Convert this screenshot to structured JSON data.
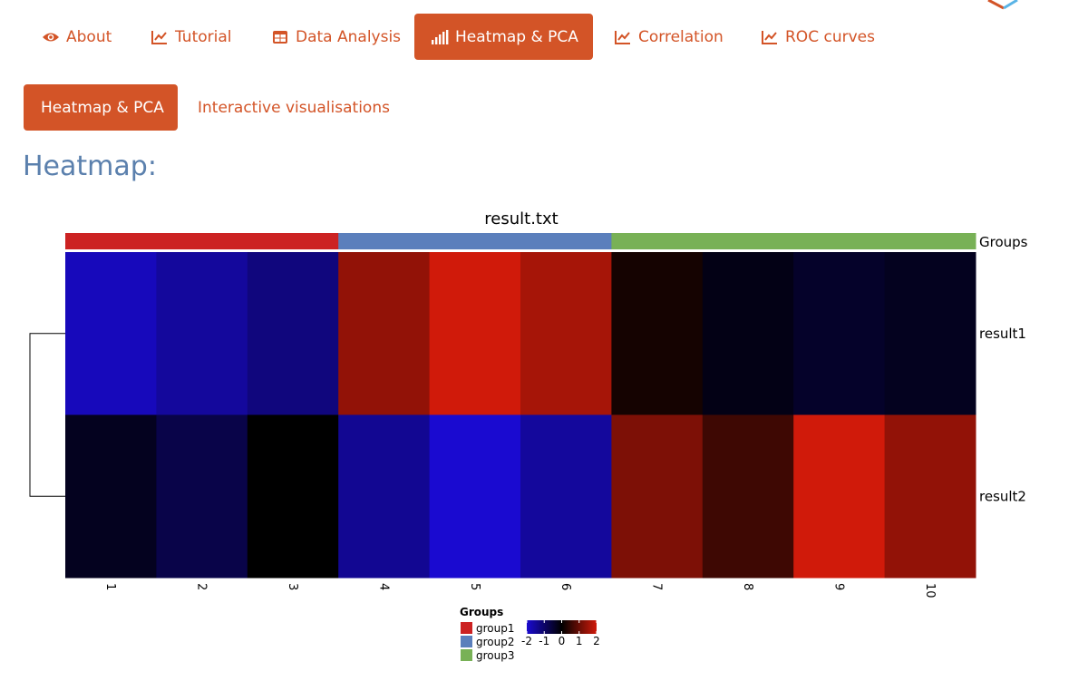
{
  "nav": {
    "tabs": [
      {
        "label": "About",
        "icon": "eye-icon",
        "active": false
      },
      {
        "label": "Tutorial",
        "icon": "line-chart-icon",
        "active": false
      },
      {
        "label": "Data Analysis",
        "icon": "table-icon",
        "active": false
      },
      {
        "label": "Heatmap & PCA",
        "icon": "signal-bars-icon",
        "active": true
      },
      {
        "label": "Correlation",
        "icon": "line-chart-icon",
        "active": false
      },
      {
        "label": "ROC curves",
        "icon": "line-chart-icon",
        "active": false
      }
    ]
  },
  "subnav": {
    "tabs": [
      {
        "label": "Heatmap & PCA",
        "active": true
      },
      {
        "label": "Interactive visualisations",
        "active": false
      }
    ]
  },
  "section_title": "Heatmap:",
  "colors": {
    "accent": "#d35427",
    "title_blue": "#5b80ad",
    "group1": "#cc2222",
    "group2": "#5b7fbc",
    "group3": "#78b156"
  },
  "chart_data": {
    "type": "heatmap",
    "title": "result.txt",
    "columns": [
      "1",
      "2",
      "3",
      "4",
      "5",
      "6",
      "7",
      "8",
      "9",
      "10"
    ],
    "rows": [
      "result1",
      "result2"
    ],
    "values": [
      [
        -1.8,
        -1.5,
        -1.2,
        1.4,
        2.0,
        1.6,
        0.2,
        -0.2,
        -0.4,
        -0.3
      ],
      [
        -0.3,
        -0.7,
        0.0,
        -1.4,
        -2.0,
        -1.5,
        1.2,
        0.6,
        2.0,
        1.4
      ]
    ],
    "annotation": {
      "name": "Groups",
      "assignments": [
        "group1",
        "group1",
        "group1",
        "group2",
        "group2",
        "group2",
        "group3",
        "group3",
        "group3",
        "group3"
      ],
      "levels": [
        "group1",
        "group2",
        "group3"
      ]
    },
    "color_scale": {
      "low": "#1a0ad0",
      "mid": "#000000",
      "high": "#d01a0a",
      "range": [
        -2,
        2
      ],
      "ticks": [
        "-2",
        "-1",
        "0",
        "1",
        "2"
      ]
    },
    "row_dendrogram": true,
    "legend_title": "Groups"
  }
}
